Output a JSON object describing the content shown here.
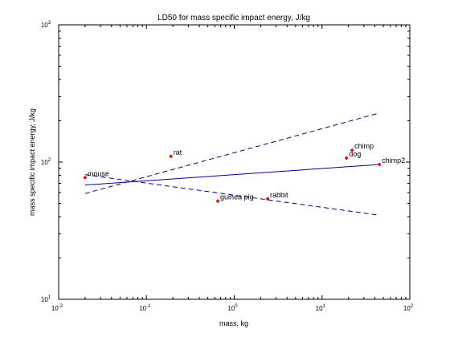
{
  "chart_data": {
    "type": "scatter",
    "title": "LD50 for mass specific impact energy, J/kg",
    "xlabel": "mass, kg",
    "ylabel": "mass specific impact energy, J/kg",
    "xscale": "log",
    "yscale": "log",
    "xlim": [
      0.01,
      100
    ],
    "ylim": [
      10,
      1000
    ],
    "grid": false,
    "x_ticks": [
      {
        "v": 0.01,
        "base": "10",
        "exp": "-2"
      },
      {
        "v": 0.1,
        "base": "10",
        "exp": "-1"
      },
      {
        "v": 1,
        "base": "10",
        "exp": "0"
      },
      {
        "v": 10,
        "base": "10",
        "exp": "1"
      },
      {
        "v": 100,
        "base": "10",
        "exp": "2"
      }
    ],
    "y_ticks": [
      {
        "v": 10,
        "base": "10",
        "exp": "1"
      },
      {
        "v": 100,
        "base": "10",
        "exp": "2"
      },
      {
        "v": 1000,
        "base": "10",
        "exp": "3"
      }
    ],
    "points": [
      {
        "label": "mouse",
        "x": 0.02,
        "y": 77
      },
      {
        "label": "rat",
        "x": 0.19,
        "y": 110
      },
      {
        "label": "guinea pig",
        "x": 0.65,
        "y": 52
      },
      {
        "label": "rabbit",
        "x": 2.4,
        "y": 54
      },
      {
        "label": "dog",
        "x": 19,
        "y": 107
      },
      {
        "label": "chimp",
        "x": 22,
        "y": 122
      },
      {
        "label": "chimp2",
        "x": 45,
        "y": 96
      }
    ],
    "lines": [
      {
        "style": "solid",
        "x": [
          0.02,
          45
        ],
        "y": [
          68,
          96
        ]
      },
      {
        "style": "dashed",
        "x": [
          0.02,
          45
        ],
        "y": [
          59,
          228
        ]
      },
      {
        "style": "dashed",
        "x": [
          0.02,
          45
        ],
        "y": [
          81,
          41
        ]
      }
    ],
    "colors": {
      "points": "#ff0000",
      "lines": "#00008b",
      "axes": "#000000"
    }
  }
}
